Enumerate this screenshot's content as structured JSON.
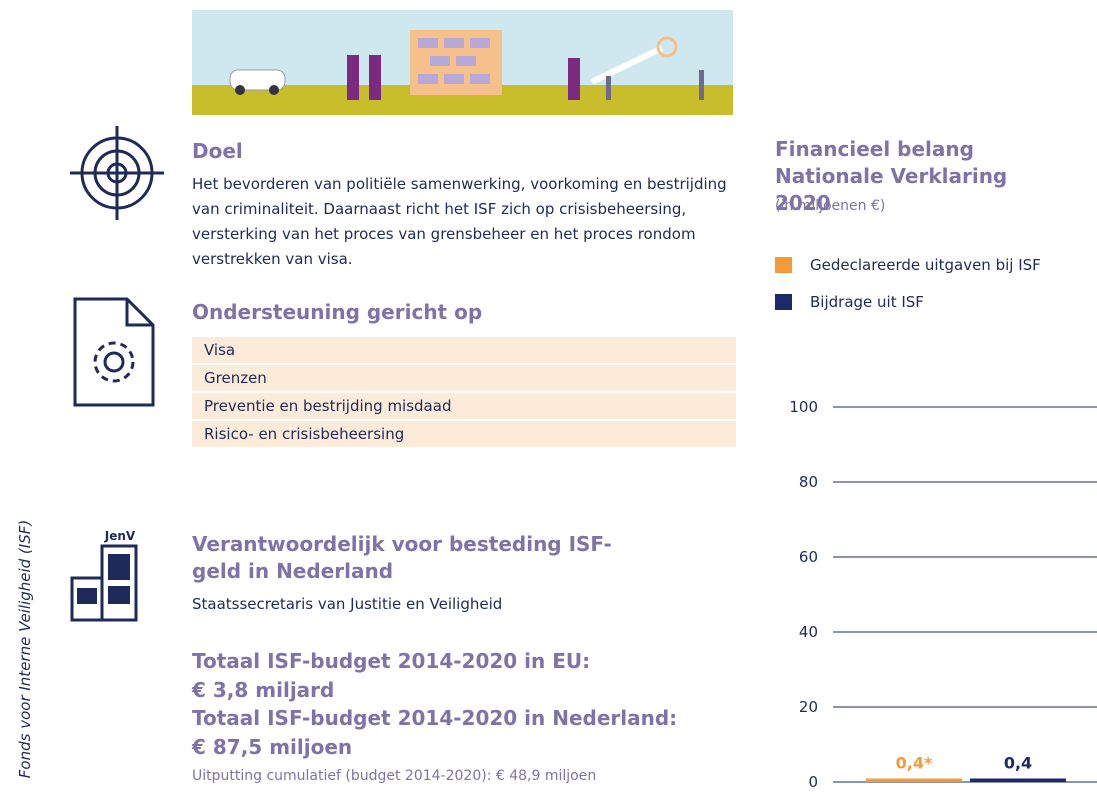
{
  "side_label": "Fonds voor Interne Veiligheid (ISF)",
  "goal": {
    "title": "Doel",
    "text": "Het bevorderen van politiële samenwerking, voorkoming en bestrijding van criminaliteit. Daarnaast richt het ISF zich op crisisbeheersing, versterking van het proces van grensbeheer en het proces rondom verstrekken van visa."
  },
  "support": {
    "title": "Ondersteuning gericht op",
    "items": [
      "Visa",
      "Grenzen",
      "Preventie en bestrijding misdaad",
      "Risico- en crisisbeheersing"
    ]
  },
  "responsible": {
    "badge": "JenV",
    "title": "Verantwoordelijk voor besteding ISF-geld in Nederland",
    "text": "Staatssecretaris van Justitie en Veiligheid"
  },
  "budget": {
    "lines": [
      "Totaal ISF-budget 2014-2020 in EU:",
      "€ 3,8 miljard",
      "Totaal ISF-budget 2014-2020 in Nederland:",
      "€ 87,5 miljoen"
    ],
    "note": "Uitputting cumulatief (budget 2014-2020): € 48,9 miljoen"
  },
  "chart_data": {
    "type": "bar",
    "title": "Financieel belang Nationale Verklaring 2020",
    "subtitle": "(in miljoenen €)",
    "categories": [
      null
    ],
    "series": [
      {
        "name": "Gedeclareerde uitgaven bij ISF",
        "color": "#f39a3a",
        "values": [
          0.4
        ],
        "value_labels": [
          "0,4*"
        ]
      },
      {
        "name": "Bijdrage uit ISF",
        "color": "#1b2a6b",
        "values": [
          0.4
        ],
        "value_labels": [
          "0,4"
        ]
      }
    ],
    "ylim": [
      0,
      100
    ],
    "yticks": [
      0,
      20,
      40,
      60,
      80,
      100
    ],
    "grid": true
  }
}
